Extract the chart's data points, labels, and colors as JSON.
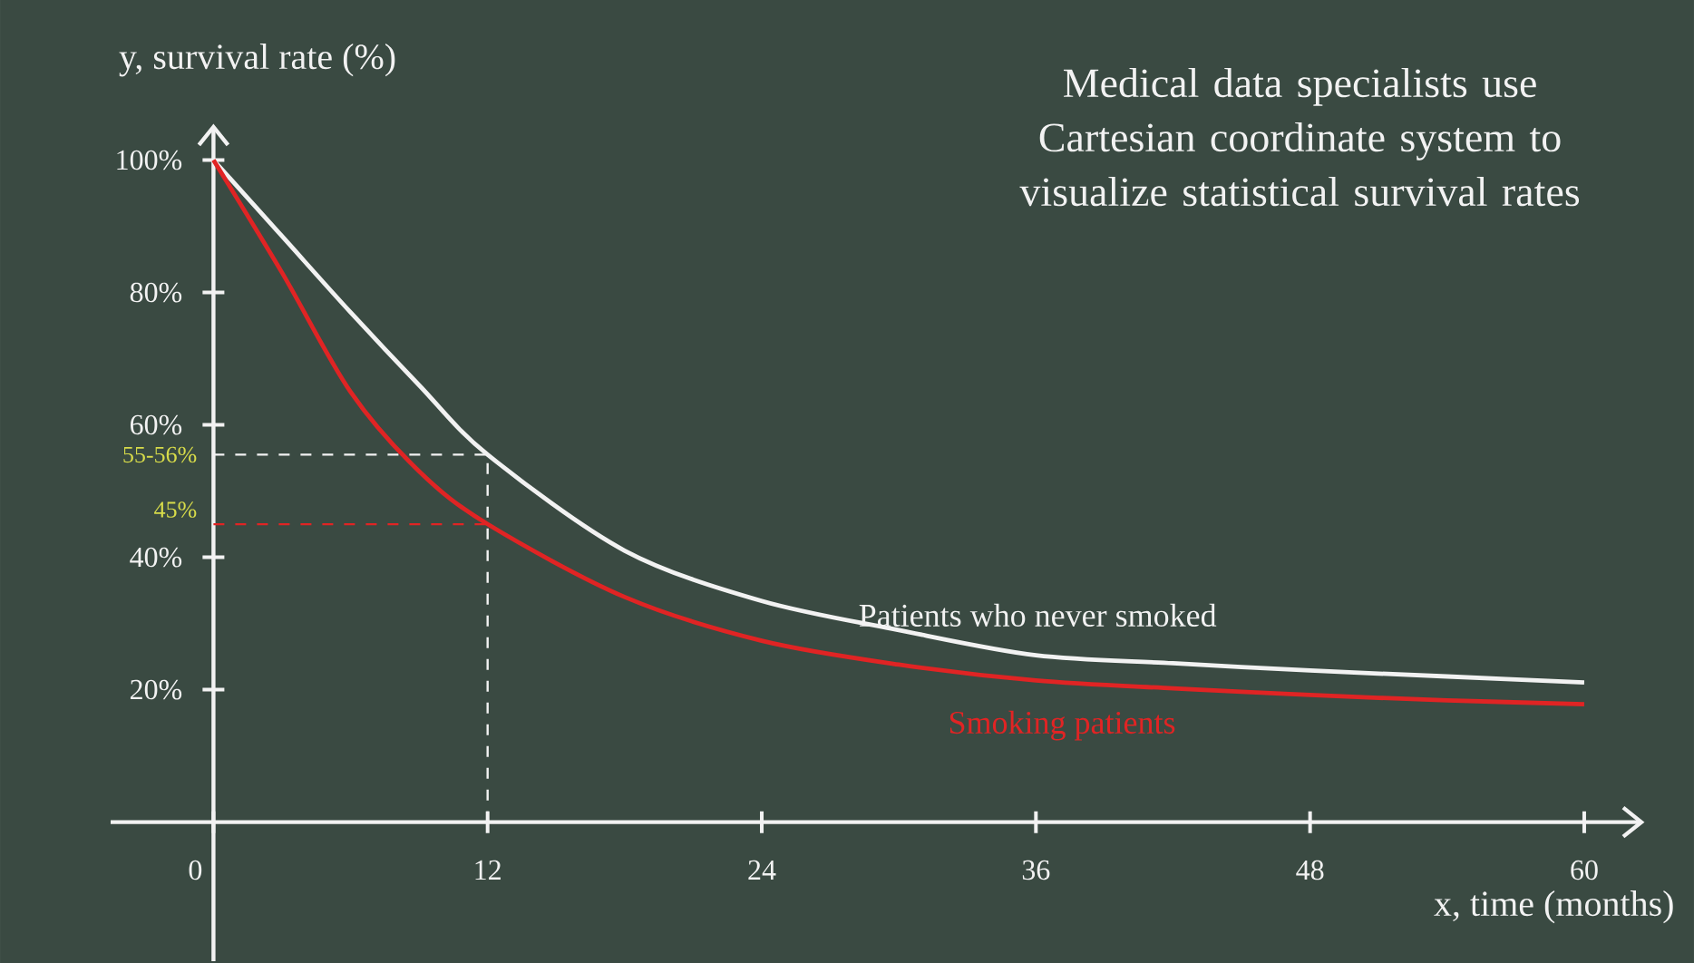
{
  "chart_data": {
    "type": "line",
    "title": "Medical data specialists use Cartesian coordinate system to visualize statistical survival rates",
    "xlabel": "x, time (months)",
    "ylabel": "y, survival rate (%)",
    "series": [
      {
        "name": "Patients who never smoked",
        "color": "#f2f2f2",
        "x": [
          0,
          3,
          6,
          9,
          12,
          18,
          24,
          30,
          36,
          42,
          48,
          54,
          60
        ],
        "values": [
          100,
          88.5,
          77,
          66,
          55.5,
          41,
          33.4,
          29,
          25.2,
          24,
          22.9,
          22,
          21.1
        ]
      },
      {
        "name": "Smoking patients",
        "color": "#e02424",
        "x": [
          0,
          3,
          6,
          9,
          12,
          18,
          24,
          30,
          36,
          42,
          48,
          54,
          60
        ],
        "values": [
          100,
          83,
          65,
          53,
          45,
          34,
          27.4,
          23.8,
          21.4,
          20.2,
          19.2,
          18.4,
          17.8
        ]
      }
    ],
    "ref_lines": [
      {
        "axis": "y",
        "value": 55.5,
        "label": "55-56%",
        "color": "#f2f2f2",
        "line_style": "dashed"
      },
      {
        "axis": "y",
        "value": 45,
        "label": "45%",
        "color": "#e02424",
        "line_style": "dashed"
      },
      {
        "axis": "x",
        "value": 12,
        "color": "#f2f2f2",
        "line_style": "dashed"
      }
    ],
    "xlim": [
      -4.5,
      62.5
    ],
    "ylim": [
      -21,
      105
    ],
    "xticks": [
      {
        "value": 0,
        "label": "0"
      },
      12,
      24,
      36,
      48,
      60
    ],
    "yticks": [
      {
        "value": 20,
        "label": "20%"
      },
      {
        "value": 40,
        "label": "40%"
      },
      {
        "value": 60,
        "label": "60%"
      },
      {
        "value": 80,
        "label": "80%"
      },
      {
        "value": 100,
        "label": "100%"
      }
    ],
    "grid": false,
    "legend": false,
    "marker": "none",
    "line_style": "solid"
  }
}
